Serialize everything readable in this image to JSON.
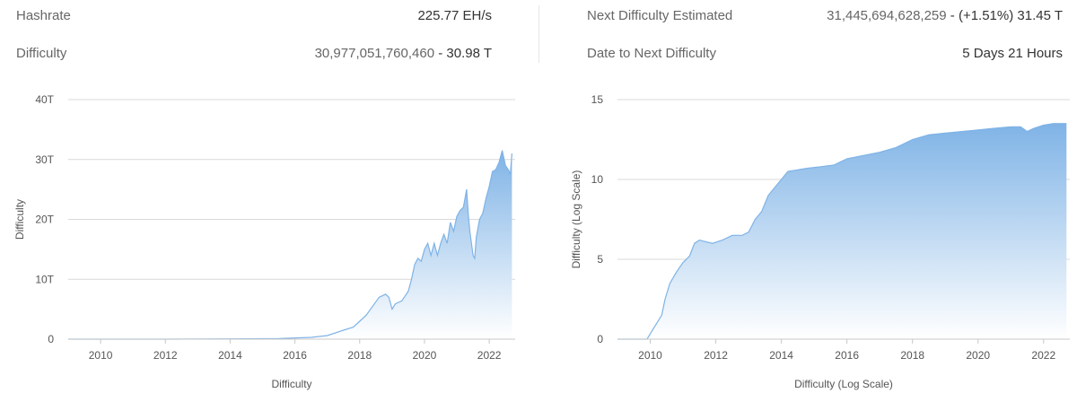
{
  "stats": {
    "hashrate_label": "Hashrate",
    "hashrate_value": "225.77 EH/s",
    "difficulty_label": "Difficulty",
    "difficulty_value_main": "30,977,051,760,460",
    "difficulty_value_sep": " - ",
    "difficulty_value_short": "30.98 T",
    "next_difficulty_label": "Next Difficulty Estimated",
    "next_difficulty_value_main": "31,445,694,628,259",
    "next_difficulty_value_sep": " - ",
    "next_difficulty_value_change": "(+1.51%) 31.45 T",
    "date_to_next_label": "Date to Next Difficulty",
    "date_to_next_value": "5 Days 21 Hours"
  },
  "colors": {
    "line": "#7fb3e6",
    "fill_top": "#7fb3e6",
    "fill_bottom": "#ffffff",
    "grid": "#d9d9d9",
    "axis_text": "#555555"
  },
  "chart_data": [
    {
      "type": "area",
      "title": "",
      "xlabel": "Difficulty",
      "ylabel": "Difficulty",
      "xlim": [
        2009.0,
        2022.8
      ],
      "ylim": [
        0,
        40
      ],
      "x_ticks": [
        2010,
        2012,
        2014,
        2016,
        2018,
        2020,
        2022
      ],
      "x_tick_labels": [
        "2010",
        "2012",
        "2014",
        "2016",
        "2018",
        "2020",
        "2022"
      ],
      "y_ticks": [
        0,
        10,
        20,
        30,
        40
      ],
      "y_tick_labels": [
        "0",
        "10T",
        "20T",
        "30T",
        "40T"
      ],
      "grid": true,
      "series": [
        {
          "x": [
            2009.0,
            2012.0,
            2014.0,
            2015.5,
            2016.5,
            2017.0,
            2017.5,
            2017.8,
            2018.0,
            2018.2,
            2018.4,
            2018.6,
            2018.8,
            2018.9,
            2019.0,
            2019.1,
            2019.3,
            2019.5,
            2019.6,
            2019.7,
            2019.8,
            2019.9,
            2020.0,
            2020.1,
            2020.2,
            2020.3,
            2020.35,
            2020.4,
            2020.5,
            2020.6,
            2020.7,
            2020.8,
            2020.9,
            2021.0,
            2021.1,
            2021.2,
            2021.3,
            2021.35,
            2021.4,
            2021.5,
            2021.55,
            2021.6,
            2021.7,
            2021.8,
            2021.9,
            2022.0,
            2022.1,
            2022.2,
            2022.3,
            2022.4,
            2022.5,
            2022.6,
            2022.65,
            2022.7
          ],
          "y": [
            0,
            0.003,
            0.04,
            0.1,
            0.3,
            0.6,
            1.5,
            2.0,
            3.0,
            4.0,
            5.5,
            7.0,
            7.5,
            7.0,
            5.0,
            5.9,
            6.4,
            8.0,
            10.0,
            12.5,
            13.5,
            13.0,
            15.0,
            16.0,
            14.0,
            16.0,
            15.0,
            14.0,
            16.0,
            17.5,
            16.0,
            19.5,
            18.0,
            20.5,
            21.5,
            22.0,
            25.0,
            21.0,
            18.0,
            14.0,
            13.5,
            17.0,
            20.0,
            21.0,
            23.5,
            25.5,
            28.0,
            28.3,
            29.5,
            31.5,
            29.0,
            28.2,
            27.5,
            31.0
          ]
        }
      ]
    },
    {
      "type": "area",
      "title": "",
      "xlabel": "Difficulty (Log Scale)",
      "ylabel": "Difficulty (Log Scale)",
      "xlim": [
        2009.0,
        2022.8
      ],
      "ylim": [
        0,
        15
      ],
      "x_ticks": [
        2010,
        2012,
        2014,
        2016,
        2018,
        2020,
        2022
      ],
      "x_tick_labels": [
        "2010",
        "2012",
        "2014",
        "2016",
        "2018",
        "2020",
        "2022"
      ],
      "y_ticks": [
        0,
        5,
        10,
        15
      ],
      "y_tick_labels": [
        "0",
        "5",
        "10",
        "15"
      ],
      "grid": true,
      "series": [
        {
          "x": [
            2009.0,
            2009.9,
            2010.05,
            2010.2,
            2010.35,
            2010.45,
            2010.6,
            2010.8,
            2011.0,
            2011.2,
            2011.35,
            2011.5,
            2011.7,
            2011.9,
            2012.2,
            2012.5,
            2012.8,
            2013.0,
            2013.2,
            2013.4,
            2013.6,
            2013.8,
            2014.0,
            2014.2,
            2014.5,
            2014.8,
            2015.2,
            2015.6,
            2016.0,
            2016.5,
            2017.0,
            2017.5,
            2018.0,
            2018.5,
            2019.0,
            2019.5,
            2020.0,
            2020.5,
            2021.0,
            2021.3,
            2021.5,
            2021.7,
            2022.0,
            2022.3,
            2022.7
          ],
          "y": [
            0,
            0,
            0.5,
            1.0,
            1.5,
            2.5,
            3.5,
            4.2,
            4.8,
            5.2,
            6.0,
            6.2,
            6.1,
            6.0,
            6.2,
            6.5,
            6.5,
            6.7,
            7.5,
            8.0,
            9.0,
            9.5,
            10.0,
            10.5,
            10.6,
            10.7,
            10.8,
            10.9,
            11.3,
            11.5,
            11.7,
            12.0,
            12.5,
            12.8,
            12.9,
            13.0,
            13.1,
            13.2,
            13.3,
            13.3,
            13.0,
            13.2,
            13.4,
            13.5,
            13.5
          ]
        }
      ]
    }
  ]
}
